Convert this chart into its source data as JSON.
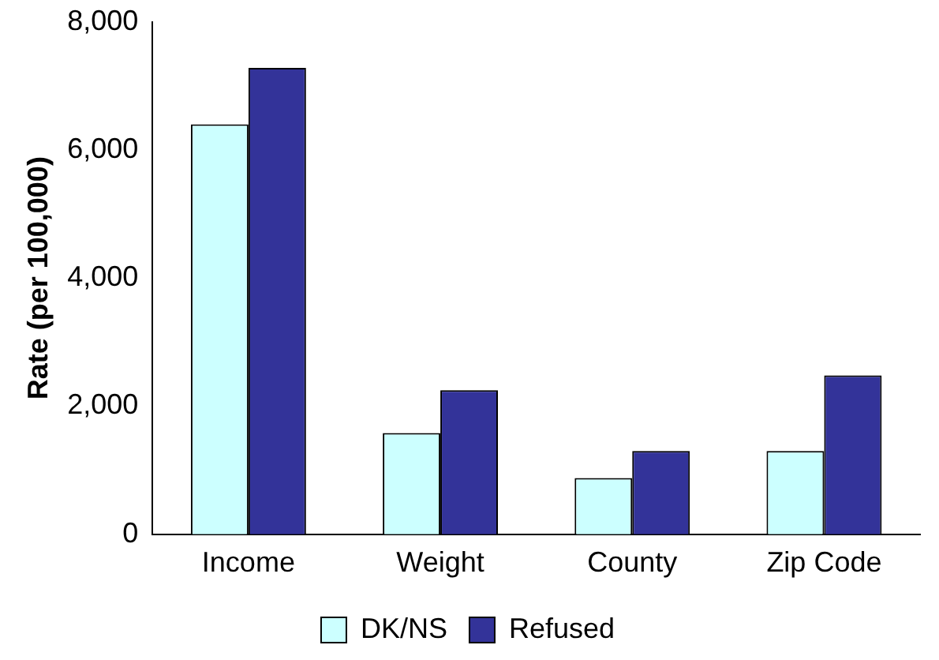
{
  "chart_data": {
    "type": "bar",
    "ylabel": "Rate (per 100,000)",
    "categories": [
      "Income",
      "Weight",
      "County",
      "Zip Code"
    ],
    "series": [
      {
        "name": "DK/NS",
        "color": "#ccffff",
        "values": [
          6400,
          1580,
          880,
          1300
        ]
      },
      {
        "name": "Refused",
        "color": "#333399",
        "values": [
          7280,
          2250,
          1300,
          2480
        ]
      }
    ],
    "ylim": [
      0,
      8000
    ],
    "yticks": [
      0,
      {
        "value": 2000,
        "label": "2,000"
      },
      {
        "value": 4000,
        "label": "4,000"
      },
      {
        "value": 6000,
        "label": "6,000"
      },
      {
        "value": 8000,
        "label": "8,000"
      }
    ],
    "grid": false,
    "legend": "bottom"
  }
}
